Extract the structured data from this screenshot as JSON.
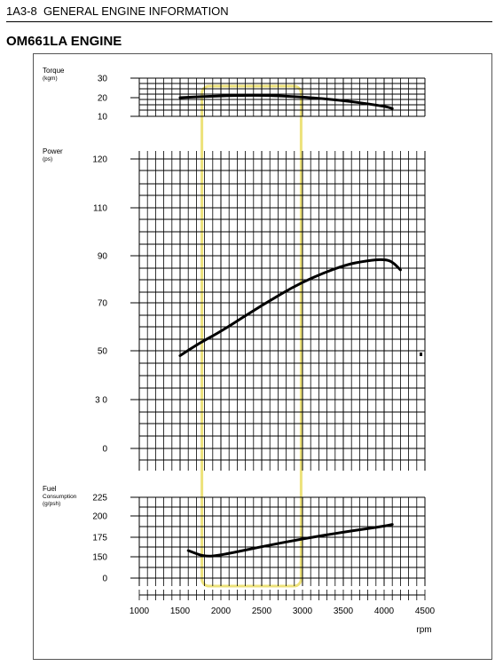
{
  "header": {
    "section": "1A3-8",
    "text": "GENERAL ENGINE INFORMATION"
  },
  "title": "OM661LA ENGINE",
  "chart_data": {
    "type": "line",
    "x_values": [
      1000,
      1500,
      2000,
      2500,
      3000,
      3500,
      4000,
      4500
    ],
    "x_tick_labels": [
      "1000",
      "1500",
      "2000",
      "2500",
      "3000",
      "3500",
      "4000",
      "4500"
    ],
    "xlabel": "rpm",
    "grid": true,
    "panels": {
      "torque": {
        "label": [
          "Torque",
          "(kgm)"
        ],
        "ticks": [
          30,
          20,
          10
        ],
        "tick_labels": [
          "30",
          "20",
          "10"
        ],
        "ylim": [
          10,
          30
        ]
      },
      "power": {
        "label": [
          "Power",
          "(ps)"
        ],
        "ticks": [
          120,
          110,
          90,
          70,
          50,
          30,
          0
        ],
        "tick_labels": [
          "120",
          "110",
          "90",
          "70",
          "50",
          "3 0",
          "0"
        ]
      },
      "fuel": {
        "label": [
          "Fuel",
          "Consumption",
          "(g/psh)"
        ],
        "ticks": [
          225,
          200,
          175,
          150,
          0
        ],
        "tick_labels": [
          "225",
          "200",
          "175",
          "150",
          "0"
        ]
      }
    },
    "series": [
      {
        "panel": "torque",
        "x": [
          1500,
          2000,
          2500,
          3000,
          3500,
          4000,
          4100
        ],
        "y": [
          20,
          21,
          21.3,
          20.4,
          18.5,
          15.5,
          14.2
        ]
      },
      {
        "panel": "power",
        "x": [
          1500,
          1750,
          2000,
          2500,
          3000,
          3500,
          3800,
          4000,
          4100,
          4200
        ],
        "y": [
          48,
          53.5,
          58,
          69,
          79,
          86,
          88,
          88.5,
          87.5,
          84
        ]
      },
      {
        "panel": "fuel",
        "x": [
          1600,
          1800,
          2000,
          2500,
          3000,
          3500,
          4000,
          4100
        ],
        "y": [
          158,
          150,
          152,
          163,
          173,
          181,
          188,
          190
        ]
      }
    ],
    "highlight": {
      "x_range": [
        1800,
        2950
      ],
      "color": "#ede27a"
    },
    "line_color": "#000000"
  }
}
